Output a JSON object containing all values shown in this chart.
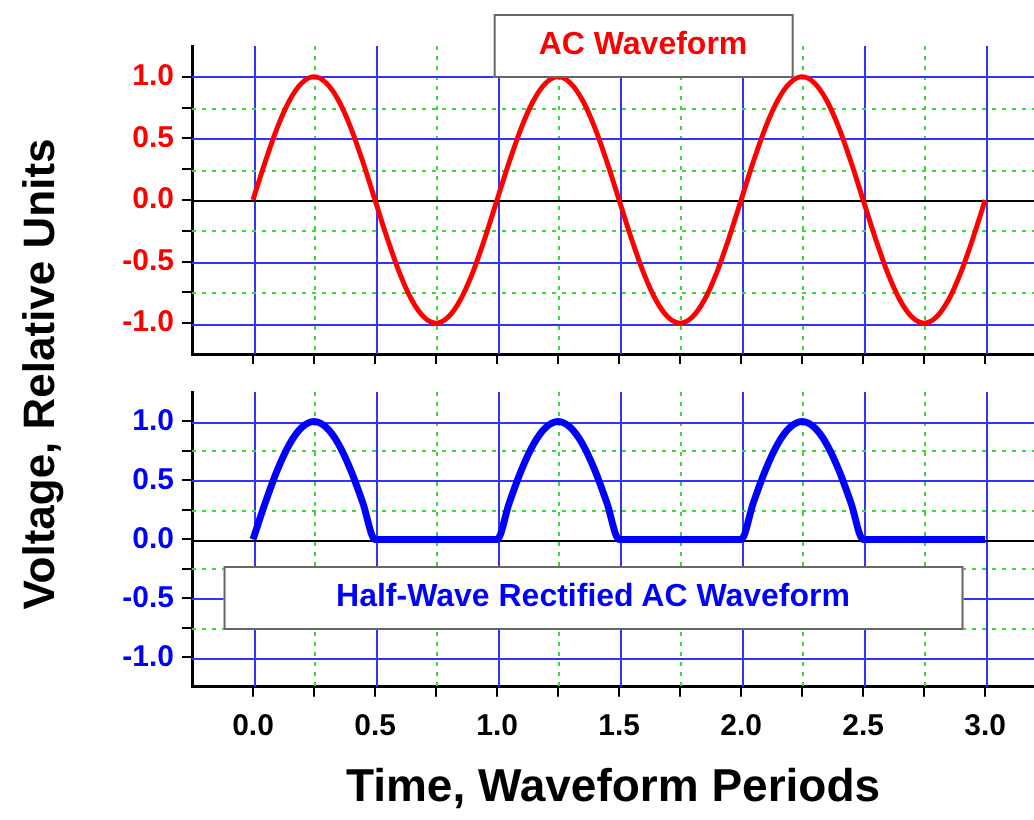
{
  "chart_data": [
    {
      "type": "line",
      "title": "AC Waveform",
      "ylabel": "Voltage, Relative Units",
      "x": [
        0,
        0.05,
        0.1,
        0.15,
        0.2,
        0.25,
        0.3,
        0.35,
        0.4,
        0.45,
        0.5,
        0.55,
        0.6,
        0.65,
        0.7,
        0.75,
        0.8,
        0.85,
        0.9,
        0.95,
        1,
        1.05,
        1.1,
        1.15,
        1.2,
        1.25,
        1.3,
        1.35,
        1.4,
        1.45,
        1.5,
        1.55,
        1.6,
        1.65,
        1.7,
        1.75,
        1.8,
        1.85,
        1.9,
        1.95,
        2,
        2.05,
        2.1,
        2.15,
        2.2,
        2.25,
        2.3,
        2.35,
        2.4,
        2.45,
        2.5,
        2.55,
        2.6,
        2.65,
        2.7,
        2.75,
        2.8,
        2.85,
        2.9,
        2.95,
        3
      ],
      "series": [
        {
          "color": "#ff0000",
          "values": [
            0,
            0.31,
            0.59,
            0.81,
            0.95,
            1,
            0.95,
            0.81,
            0.59,
            0.31,
            0,
            -0.31,
            -0.59,
            -0.81,
            -0.95,
            -1,
            -0.95,
            -0.81,
            -0.59,
            -0.31,
            0,
            0.31,
            0.59,
            0.81,
            0.95,
            1,
            0.95,
            0.81,
            0.59,
            0.31,
            0,
            -0.31,
            -0.59,
            -0.81,
            -0.95,
            -1,
            -0.95,
            -0.81,
            -0.59,
            -0.31,
            0,
            0.31,
            0.59,
            0.81,
            0.95,
            1,
            0.95,
            0.81,
            0.59,
            0.31,
            0,
            -0.31,
            -0.59,
            -0.81,
            -0.95,
            -1,
            -0.95,
            -0.81,
            -0.59,
            -0.31,
            0
          ]
        }
      ],
      "xlim": [
        -0.25,
        3.2
      ],
      "xticks": [
        0,
        {
          "value": 0.25,
          "label": null
        },
        0.5,
        {
          "value": 0.75,
          "label": null
        },
        1,
        {
          "value": 1.25,
          "label": null
        },
        1.5,
        {
          "value": 1.75,
          "label": null
        },
        2,
        {
          "value": 2.25,
          "label": null
        },
        2.5,
        {
          "value": 2.75,
          "label": null
        },
        3
      ],
      "ylim": [
        -1.25,
        1.25
      ],
      "yticks": [
        {
          "value": -1,
          "label": "-1.0"
        },
        {
          "value": -0.75,
          "label": null
        },
        {
          "value": -0.5,
          "label": "-0.5"
        },
        {
          "value": -0.25,
          "label": null
        },
        {
          "value": 0,
          "label": "0.0"
        },
        {
          "value": 0.25,
          "label": null
        },
        {
          "value": 0.5,
          "label": "0.5"
        },
        {
          "value": 0.75,
          "label": null
        },
        {
          "value": 1,
          "label": "1.0"
        }
      ],
      "grid": true,
      "legend": false,
      "marker": "none",
      "line_style": "solid",
      "tick_labels": "y"
    },
    {
      "type": "line",
      "title": "Half-Wave Rectified AC Waveform",
      "xlabel": "Time, Waveform Periods",
      "x": [
        0,
        0.05,
        0.1,
        0.15,
        0.2,
        0.25,
        0.3,
        0.35,
        0.4,
        0.45,
        0.5,
        0.55,
        0.6,
        0.65,
        0.7,
        0.75,
        0.8,
        0.85,
        0.9,
        0.95,
        1,
        1.05,
        1.1,
        1.15,
        1.2,
        1.25,
        1.3,
        1.35,
        1.4,
        1.45,
        1.5,
        1.55,
        1.6,
        1.65,
        1.7,
        1.75,
        1.8,
        1.85,
        1.9,
        1.95,
        2,
        2.05,
        2.1,
        2.15,
        2.2,
        2.25,
        2.3,
        2.35,
        2.4,
        2.45,
        2.5,
        2.55,
        2.6,
        2.65,
        2.7,
        2.75,
        2.8,
        2.85,
        2.9,
        2.95,
        3
      ],
      "series": [
        {
          "color": "#0000ff",
          "values": [
            0,
            0.31,
            0.59,
            0.81,
            0.95,
            1,
            0.95,
            0.81,
            0.59,
            0.31,
            0,
            0,
            0,
            0,
            0,
            0,
            0,
            0,
            0,
            0,
            0,
            0.31,
            0.59,
            0.81,
            0.95,
            1,
            0.95,
            0.81,
            0.59,
            0.31,
            0,
            0,
            0,
            0,
            0,
            0,
            0,
            0,
            0,
            0,
            0,
            0.31,
            0.59,
            0.81,
            0.95,
            1,
            0.95,
            0.81,
            0.59,
            0.31,
            0,
            0,
            0,
            0,
            0,
            0,
            0,
            0,
            0,
            0,
            0
          ]
        }
      ],
      "xlim": [
        -0.25,
        3.2
      ],
      "xticks": [
        {
          "value": 0,
          "label": "0.0"
        },
        {
          "value": 0.25,
          "label": null
        },
        0.5,
        {
          "value": 0.75,
          "label": null
        },
        {
          "value": 1,
          "label": "1.0"
        },
        {
          "value": 1.25,
          "label": null
        },
        1.5,
        {
          "value": 1.75,
          "label": null
        },
        {
          "value": 2,
          "label": "2.0"
        },
        {
          "value": 2.25,
          "label": null
        },
        2.5,
        {
          "value": 2.75,
          "label": null
        },
        {
          "value": 3,
          "label": "3.0"
        }
      ],
      "ylim": [
        -1.25,
        1.25
      ],
      "yticks": [
        {
          "value": -1,
          "label": "-1.0"
        },
        {
          "value": -0.75,
          "label": null
        },
        {
          "value": -0.5,
          "label": "-0.5"
        },
        {
          "value": -0.25,
          "label": null
        },
        {
          "value": 0,
          "label": "0.0"
        },
        {
          "value": 0.25,
          "label": null
        },
        {
          "value": 0.5,
          "label": "0.5"
        },
        {
          "value": 0.75,
          "label": null
        },
        {
          "value": 1,
          "label": "1.0"
        }
      ],
      "grid": true,
      "legend": false,
      "marker": "none",
      "line_style": "solid"
    }
  ]
}
